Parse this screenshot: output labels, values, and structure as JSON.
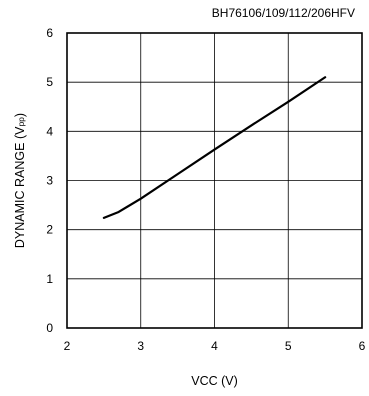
{
  "header": {
    "part_numbers": "BH76106/109/112/206HFV"
  },
  "chart_data": {
    "type": "line",
    "title": "",
    "xlabel": "VCC (V)",
    "ylabel_main": "DYNAMIC RANGE (V",
    "ylabel_sub": "pp",
    "ylabel_close": ")",
    "xlim": [
      2,
      6
    ],
    "ylim": [
      0,
      6
    ],
    "xticks": [
      "2",
      "3",
      "4",
      "5",
      "6"
    ],
    "yticks": [
      "0",
      "1",
      "2",
      "3",
      "4",
      "5",
      "6"
    ],
    "grid": true,
    "series": [
      {
        "x": [
          2.5,
          2.7,
          3.0,
          3.5,
          4.0,
          4.5,
          5.0,
          5.5
        ],
        "y": [
          2.24,
          2.36,
          2.63,
          3.13,
          3.63,
          4.12,
          4.6,
          5.1
        ]
      }
    ]
  }
}
